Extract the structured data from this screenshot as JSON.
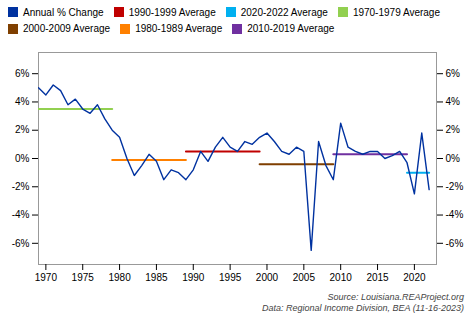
{
  "chart_data": {
    "type": "line",
    "x": [
      1969,
      1970,
      1971,
      1972,
      1973,
      1974,
      1975,
      1976,
      1977,
      1978,
      1979,
      1980,
      1981,
      1982,
      1983,
      1984,
      1985,
      1986,
      1987,
      1988,
      1989,
      1990,
      1991,
      1992,
      1993,
      1994,
      1995,
      1996,
      1997,
      1998,
      1999,
      2000,
      2001,
      2002,
      2003,
      2004,
      2005,
      2006,
      2007,
      2008,
      2009,
      2010,
      2011,
      2012,
      2013,
      2014,
      2015,
      2016,
      2017,
      2018,
      2019,
      2020,
      2021,
      2022
    ],
    "series": [
      {
        "name": "Annual % Change",
        "color": "#0032a0",
        "values": [
          5.0,
          4.5,
          5.2,
          4.8,
          3.8,
          4.2,
          3.5,
          3.2,
          3.8,
          2.8,
          2.0,
          1.5,
          0.0,
          -1.2,
          -0.5,
          0.3,
          -0.2,
          -1.5,
          -0.8,
          -1.0,
          -1.5,
          -0.8,
          0.5,
          -0.2,
          0.8,
          1.5,
          0.8,
          0.5,
          1.2,
          1.0,
          1.5,
          1.8,
          1.2,
          0.5,
          0.3,
          0.8,
          0.5,
          -6.5,
          1.2,
          -0.5,
          -1.5,
          2.5,
          0.8,
          0.5,
          0.3,
          0.5,
          0.5,
          0.0,
          0.2,
          0.5,
          -0.3,
          -2.5,
          1.8,
          -2.2
        ]
      },
      {
        "name": "1990-1999 Average",
        "color": "#c00000",
        "x": [
          1989,
          1999
        ],
        "values": [
          0.5,
          0.5
        ]
      },
      {
        "name": "2020-2022 Average",
        "color": "#00b0f0",
        "x": [
          2019,
          2022
        ],
        "values": [
          -1.0,
          -1.0
        ]
      },
      {
        "name": "1970-1979 Average",
        "color": "#92d050",
        "x": [
          1969,
          1979
        ],
        "values": [
          3.5,
          3.5
        ]
      },
      {
        "name": "2000-2009 Average",
        "color": "#7f3f00",
        "x": [
          1999,
          2009
        ],
        "values": [
          -0.4,
          -0.4
        ]
      },
      {
        "name": "1980-1989 Average",
        "color": "#ff8000",
        "x": [
          1979,
          1989
        ],
        "values": [
          -0.1,
          -0.1
        ]
      },
      {
        "name": "2010-2019 Average",
        "color": "#7030a0",
        "x": [
          2009,
          2019
        ],
        "values": [
          0.3,
          0.3
        ]
      }
    ],
    "xlim": [
      1969,
      2023
    ],
    "xticks": [
      1970,
      1975,
      1980,
      1985,
      1990,
      1995,
      2000,
      2005,
      2010,
      2015,
      2020
    ],
    "ylim": [
      -7.5,
      7.5
    ],
    "yticks": [
      {
        "value": -6,
        "label": "-6%"
      },
      {
        "value": -4,
        "label": "-4%"
      },
      {
        "value": -2,
        "label": "-2%"
      },
      {
        "value": 0,
        "label": "0%"
      },
      {
        "value": 2,
        "label": "2%"
      },
      {
        "value": 4,
        "label": "4%"
      },
      {
        "value": 6,
        "label": "6%"
      }
    ],
    "y2lim": [
      -7.5,
      7.5
    ],
    "y2ticks": [
      {
        "value": -6,
        "label": "-6%"
      },
      {
        "value": -4,
        "label": "-4%"
      },
      {
        "value": -2,
        "label": "-2%"
      },
      {
        "value": 0,
        "label": "0%"
      },
      {
        "value": 2,
        "label": "2%"
      },
      {
        "value": 4,
        "label": "4%"
      },
      {
        "value": 6,
        "label": "6%"
      }
    ],
    "annotations": [
      "Source: Louisiana.REAProject.org",
      "Data: Regional Income Division, BEA (11-16-2023)"
    ],
    "legend": "top",
    "grid": false
  }
}
